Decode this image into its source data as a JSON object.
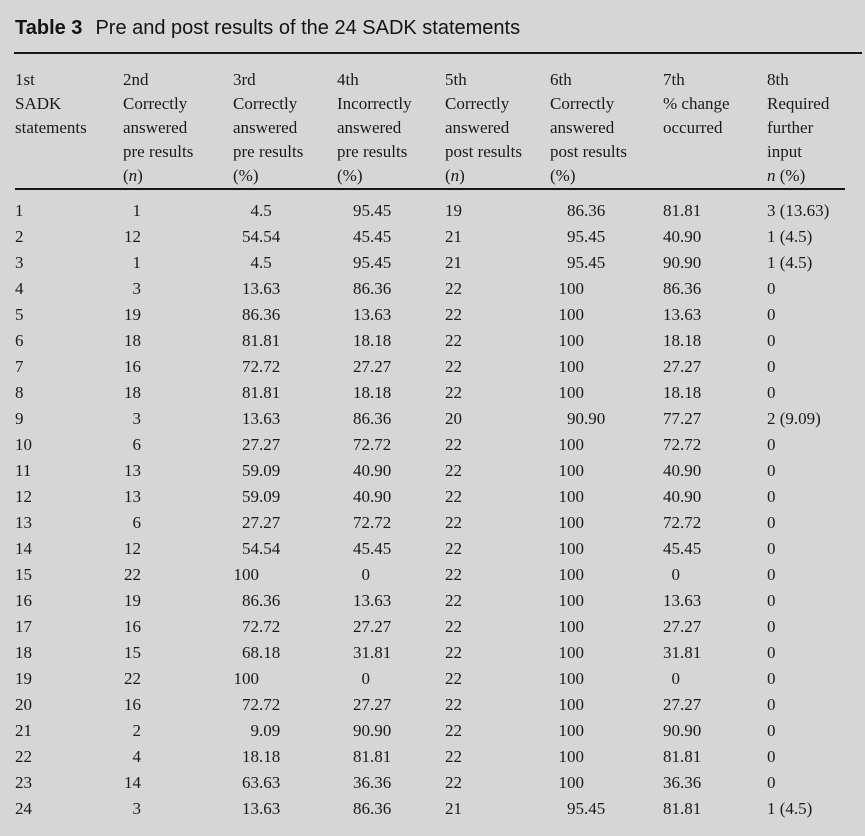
{
  "title": {
    "label": "Table 3",
    "text": "Pre and post results of the 24 SADK statements"
  },
  "table": {
    "columns": [
      {
        "lines": [
          "1st",
          "SADK",
          "statements"
        ]
      },
      {
        "lines": [
          "2nd",
          "Correctly",
          "answered",
          "pre results",
          "(n)"
        ]
      },
      {
        "lines": [
          "3rd",
          "Correctly",
          "answered",
          "pre results",
          "(%)"
        ]
      },
      {
        "lines": [
          "4th",
          "Incorrectly",
          "answered",
          "pre results",
          "(%)"
        ]
      },
      {
        "lines": [
          "5th",
          "Correctly",
          "answered",
          "post results",
          "(n)"
        ]
      },
      {
        "lines": [
          "6th",
          "Correctly",
          "answered",
          "post results",
          "(%)"
        ]
      },
      {
        "lines": [
          "7th",
          "% change",
          "occurred"
        ]
      },
      {
        "lines": [
          "8th",
          "Required",
          "further",
          "input",
          "n (%)"
        ]
      }
    ],
    "rows": [
      [
        "1",
        "1",
        "4.5",
        "95.45",
        "19",
        "86.36",
        "81.81",
        "3 (13.63)"
      ],
      [
        "2",
        "12",
        "54.54",
        "45.45",
        "21",
        "95.45",
        "40.90",
        "1 (4.5)"
      ],
      [
        "3",
        "1",
        "4.5",
        "95.45",
        "21",
        "95.45",
        "90.90",
        "1 (4.5)"
      ],
      [
        "4",
        "3",
        "13.63",
        "86.36",
        "22",
        "100",
        "86.36",
        "0"
      ],
      [
        "5",
        "19",
        "86.36",
        "13.63",
        "22",
        "100",
        "13.63",
        "0"
      ],
      [
        "6",
        "18",
        "81.81",
        "18.18",
        "22",
        "100",
        "18.18",
        "0"
      ],
      [
        "7",
        "16",
        "72.72",
        "27.27",
        "22",
        "100",
        "27.27",
        "0"
      ],
      [
        "8",
        "18",
        "81.81",
        "18.18",
        "22",
        "100",
        "18.18",
        "0"
      ],
      [
        "9",
        "3",
        "13.63",
        "86.36",
        "20",
        "90.90",
        "77.27",
        "2 (9.09)"
      ],
      [
        "10",
        "6",
        "27.27",
        "72.72",
        "22",
        "100",
        "72.72",
        "0"
      ],
      [
        "11",
        "13",
        "59.09",
        "40.90",
        "22",
        "100",
        "40.90",
        "0"
      ],
      [
        "12",
        "13",
        "59.09",
        "40.90",
        "22",
        "100",
        "40.90",
        "0"
      ],
      [
        "13",
        "6",
        "27.27",
        "72.72",
        "22",
        "100",
        "72.72",
        "0"
      ],
      [
        "14",
        "12",
        "54.54",
        "45.45",
        "22",
        "100",
        "45.45",
        "0"
      ],
      [
        "15",
        "22",
        "100",
        "0",
        "22",
        "100",
        "0",
        "0"
      ],
      [
        "16",
        "19",
        "86.36",
        "13.63",
        "22",
        "100",
        "13.63",
        "0"
      ],
      [
        "17",
        "16",
        "72.72",
        "27.27",
        "22",
        "100",
        "27.27",
        "0"
      ],
      [
        "18",
        "15",
        "68.18",
        "31.81",
        "22",
        "100",
        "31.81",
        "0"
      ],
      [
        "19",
        "22",
        "100",
        "0",
        "22",
        "100",
        "0",
        "0"
      ],
      [
        "20",
        "16",
        "72.72",
        "27.27",
        "22",
        "100",
        "27.27",
        "0"
      ],
      [
        "21",
        "2",
        "9.09",
        "90.90",
        "22",
        "100",
        "90.90",
        "0"
      ],
      [
        "22",
        "4",
        "18.18",
        "81.81",
        "22",
        "100",
        "81.81",
        "0"
      ],
      [
        "23",
        "14",
        "63.63",
        "36.36",
        "22",
        "100",
        "36.36",
        "0"
      ],
      [
        "24",
        "3",
        "13.63",
        "86.36",
        "21",
        "95.45",
        "81.81",
        "1 (4.5)"
      ]
    ]
  }
}
